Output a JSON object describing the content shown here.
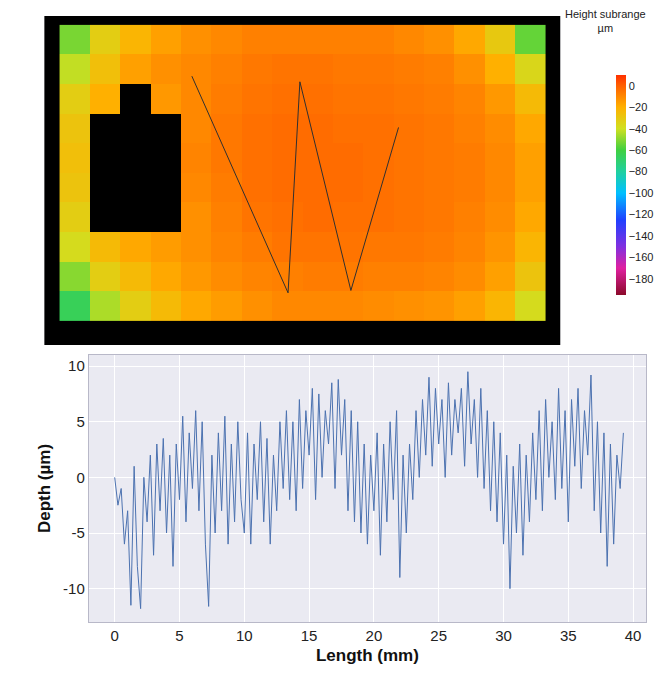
{
  "chart_data": [
    {
      "type": "heatmap",
      "x": [
        0,
        1,
        2,
        3,
        4,
        5,
        6,
        7,
        8,
        9,
        10,
        11,
        12,
        13,
        14,
        15
      ],
      "y": [
        0,
        1,
        2,
        3,
        4,
        5,
        6,
        7,
        8,
        9
      ],
      "z": [
        [
          -52,
          -32,
          -22,
          -16,
          -12,
          -10,
          -8,
          -8,
          -8,
          -8,
          -8,
          -10,
          -12,
          -18,
          -30,
          -55
        ],
        [
          -42,
          -26,
          -16,
          -12,
          -10,
          -8,
          -6,
          -5,
          -5,
          -6,
          -6,
          -7,
          -8,
          -12,
          -20,
          -36
        ],
        [
          -32,
          -20,
          null,
          -14,
          -10,
          -7,
          -5,
          -4,
          -4,
          -5,
          -5,
          -6,
          -7,
          -9,
          -14,
          -24
        ],
        [
          -28,
          null,
          null,
          null,
          -10,
          -6,
          -4,
          -3,
          -3,
          -4,
          -4,
          -5,
          -6,
          -8,
          -11,
          -18
        ],
        [
          -26,
          null,
          null,
          null,
          -9,
          -6,
          -4,
          -3,
          -3,
          -3,
          -4,
          -5,
          -6,
          -7,
          -10,
          -16
        ],
        [
          -28,
          null,
          null,
          null,
          -10,
          -7,
          -4,
          -3,
          -3,
          -3,
          -4,
          -5,
          -6,
          -7,
          -10,
          -16
        ],
        [
          -32,
          null,
          null,
          null,
          -12,
          -8,
          -5,
          -4,
          -3,
          -4,
          -4,
          -5,
          -6,
          -8,
          -11,
          -18
        ],
        [
          -38,
          -24,
          -18,
          -15,
          -12,
          -9,
          -7,
          -5,
          -5,
          -5,
          -6,
          -6,
          -7,
          -9,
          -13,
          -22
        ],
        [
          -50,
          -32,
          -24,
          -18,
          -14,
          -11,
          -9,
          -8,
          -7,
          -7,
          -8,
          -8,
          -9,
          -11,
          -16,
          -28
        ],
        [
          -65,
          -45,
          -32,
          -24,
          -18,
          -15,
          -12,
          -10,
          -10,
          -10,
          -11,
          -12,
          -13,
          -16,
          -22,
          -38
        ]
      ],
      "xlim": [
        -1,
        16
      ],
      "ylim": [
        10.3,
        -0.8
      ],
      "tick_labels": false,
      "grid": false,
      "colorbar": {
        "title": [
          "Height subrange",
          "µm"
        ],
        "range": [
          -195,
          10
        ],
        "ticks": [
          0,
          -20,
          -40,
          -60,
          -80,
          -100,
          -120,
          -140,
          -160,
          -180
        ]
      },
      "series": [
        {
          "type": "line",
          "color": "#303030",
          "x": [
            3.86,
            7.03,
            7.42,
            9.1,
            10.67
          ],
          "y": [
            1.23,
            8.54,
            1.42,
            8.46,
            2.96
          ]
        }
      ]
    },
    {
      "type": "line",
      "xlabel": "Length (mm)",
      "ylabel": "Depth (µm)",
      "color": "#4c72b0",
      "grid": true,
      "xlim": [
        -2,
        41
      ],
      "ylim": [
        -13,
        11
      ],
      "xticks": [
        0,
        5,
        10,
        15,
        20,
        25,
        30,
        35,
        40
      ],
      "yticks": [
        -10,
        -5,
        0,
        5,
        10
      ],
      "x": [
        0,
        0.25,
        0.5,
        0.75,
        1,
        1.25,
        1.5,
        1.75,
        2,
        2.25,
        2.5,
        2.75,
        3,
        3.25,
        3.5,
        3.75,
        4,
        4.25,
        4.5,
        4.75,
        5,
        5.25,
        5.5,
        5.75,
        6,
        6.25,
        6.5,
        6.75,
        7,
        7.25,
        7.5,
        7.75,
        8,
        8.25,
        8.5,
        8.75,
        9,
        9.25,
        9.5,
        9.75,
        10,
        10.25,
        10.5,
        10.75,
        11,
        11.25,
        11.5,
        11.75,
        12,
        12.25,
        12.5,
        12.75,
        13,
        13.25,
        13.5,
        13.75,
        14,
        14.25,
        14.5,
        14.75,
        15,
        15.25,
        15.5,
        15.75,
        16,
        16.25,
        16.5,
        16.75,
        17,
        17.25,
        17.5,
        17.75,
        18,
        18.25,
        18.5,
        18.75,
        19,
        19.25,
        19.5,
        19.75,
        20,
        20.25,
        20.5,
        20.75,
        21,
        21.25,
        21.5,
        21.75,
        22,
        22.25,
        22.5,
        22.75,
        23,
        23.25,
        23.5,
        23.75,
        24,
        24.25,
        24.5,
        24.75,
        25,
        25.25,
        25.5,
        25.75,
        26,
        26.25,
        26.5,
        26.75,
        27,
        27.25,
        27.5,
        27.75,
        28,
        28.25,
        28.5,
        28.75,
        29,
        29.25,
        29.5,
        29.75,
        30,
        30.25,
        30.5,
        30.75,
        31,
        31.25,
        31.5,
        31.75,
        32,
        32.25,
        32.5,
        32.75,
        33,
        33.25,
        33.5,
        33.75,
        34,
        34.25,
        34.5,
        34.75,
        35,
        35.25,
        35.5,
        35.75,
        36,
        36.25,
        36.5,
        36.75,
        37,
        37.25,
        37.5,
        37.75,
        38,
        38.25,
        38.5,
        38.75,
        39,
        39.25
      ],
      "values": [
        0,
        -2.5,
        -1,
        -6,
        -3,
        -11.5,
        1,
        -8,
        -11.8,
        0,
        -4,
        2,
        -7,
        3,
        -3,
        3.5,
        -5,
        2,
        -8,
        3,
        -2,
        5.5,
        -4,
        4,
        -1,
        6,
        -3,
        5,
        -6,
        -11.6,
        2,
        -5,
        4,
        -3,
        5.5,
        -6,
        3,
        -4,
        5,
        -2,
        -5,
        4,
        -6,
        3,
        -2,
        5,
        -4,
        3.5,
        -6,
        2,
        -3,
        5,
        -1,
        6,
        -2,
        5,
        -3,
        7,
        -1,
        6,
        2,
        8,
        -2,
        7.5,
        0,
        6,
        3,
        8.5,
        -1,
        8.8,
        2,
        7,
        -3,
        6,
        -4,
        5,
        -5,
        3,
        -6,
        2,
        -3,
        4,
        -7,
        3,
        -4,
        5,
        -2,
        6,
        -9,
        2,
        -5,
        3,
        -2,
        6,
        0,
        7,
        2,
        9,
        1,
        8,
        3,
        7,
        0,
        8.5,
        2,
        7,
        4,
        8,
        1,
        9.5,
        3,
        7,
        0,
        8,
        -1,
        6,
        -3,
        5,
        -4,
        4,
        -6,
        2,
        -10,
        1,
        -5,
        3,
        -7,
        2,
        -4,
        4,
        -2,
        6,
        -3,
        7,
        0,
        5,
        -2,
        8,
        -1,
        6,
        -4,
        7,
        1,
        8,
        -1,
        6,
        2,
        9.2,
        -3,
        5,
        -5,
        4,
        -8,
        3,
        -6,
        2,
        -1,
        4
      ]
    }
  ]
}
